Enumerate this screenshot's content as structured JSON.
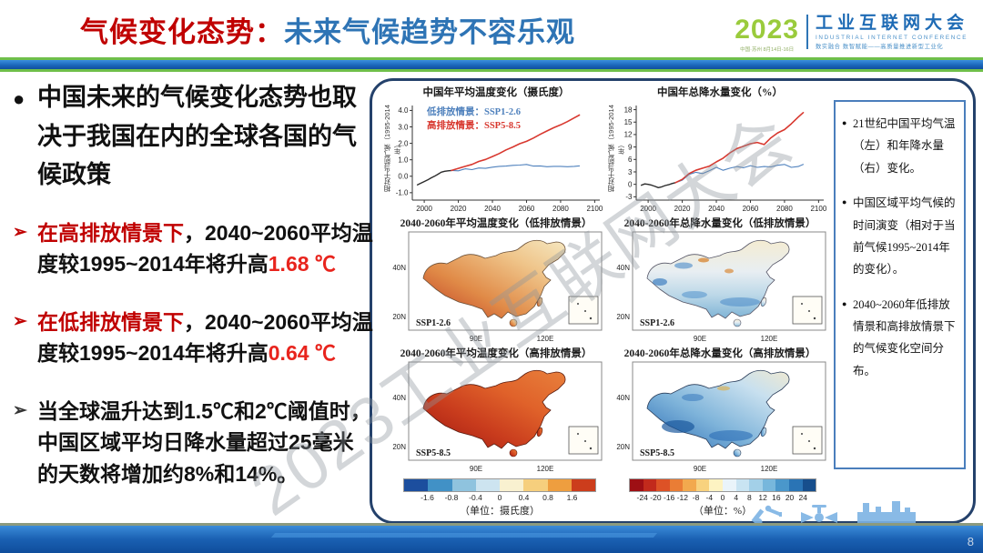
{
  "header": {
    "title_red": "气候变化态势：",
    "title_blue": "未来气候趋势不容乐观",
    "logo": {
      "year": "2023",
      "year_caption": "中国·苏州 8月14日-16日",
      "name_cn": "工业互联网大会",
      "name_en": "INDUSTRIAL INTERNET CONFERENCE",
      "slogan": "数实融合 数智赋能——高质量推进新型工业化"
    }
  },
  "left_panel": {
    "bullets": [
      {
        "cls": "b-main",
        "marker": "●",
        "marker_color": "#111111",
        "segments": [
          {
            "text": "中国未来的气候变化态势也取决于我国在内的全球各国的气候政策",
            "color": "#111111"
          }
        ]
      },
      {
        "cls": "b-sub",
        "marker": "➢",
        "marker_color": "#c00000",
        "segments": [
          {
            "text": "在高排放情景下",
            "color": "#c00000"
          },
          {
            "text": "，2040~2060平均温度较1995~2014年将升高",
            "color": "#111111"
          },
          {
            "text": "1.68 ℃",
            "color": "#e8241d"
          }
        ]
      },
      {
        "cls": "b-sub",
        "marker": "➢",
        "marker_color": "#c00000",
        "segments": [
          {
            "text": "在低排放情景下",
            "color": "#c00000"
          },
          {
            "text": "，2040~2060平均温度较1995~2014年将升高",
            "color": "#111111"
          },
          {
            "text": "0.64 ℃",
            "color": "#e8241d"
          }
        ]
      },
      {
        "cls": "b-sub b-last",
        "marker": "➢",
        "marker_color": "#333333",
        "segments": [
          {
            "text": "当全球温升达到1.5℃和2℃阈值时，中国区域平均日降水量超过25毫米的天数将增加约8%和14%。",
            "color": "#111111"
          }
        ]
      }
    ]
  },
  "notes_box": {
    "bullets": [
      "21世纪中国平均气温（左）和年降水量（右）变化。",
      "中国区域平均气候的时间演变（相对于当前气候1995~2014年的变化）。",
      "2040~2060年低排放情景和高排放情景下的气候变化空间分布。"
    ]
  },
  "chart_data": {
    "line_charts": [
      {
        "type": "line",
        "title": "中国年平均温度变化（摄氏度）",
        "ylabel": "相对于当前气候（1995-2014年）",
        "xlim": [
          1993,
          2103
        ],
        "ylim": [
          -1.45,
          4.3
        ],
        "xticks": [
          2000,
          2020,
          2040,
          2060,
          2080,
          2100
        ],
        "yticks": [
          -1,
          0,
          1,
          2,
          3,
          4
        ],
        "ytick_labels": [
          "-1.0",
          "0.0",
          "1.0",
          "2.0",
          "3.0",
          "4.0"
        ],
        "legend": [
          {
            "label": "低排放情景：SSP1-2.6",
            "color": "#4f81bd"
          },
          {
            "label": "高排放情景：SSP5-8.5",
            "color": "#d8382f"
          }
        ],
        "series": [
          {
            "name": "历史",
            "color": "#2b2b2b",
            "width": 1.4,
            "points": [
              [
                1996,
                -0.52
              ],
              [
                1998,
                -0.42
              ],
              [
                2000,
                -0.32
              ],
              [
                2002,
                -0.22
              ],
              [
                2004,
                -0.1
              ],
              [
                2006,
                0.0
              ],
              [
                2008,
                0.12
              ],
              [
                2010,
                0.25
              ],
              [
                2012,
                0.3
              ],
              [
                2014,
                0.33
              ],
              [
                2016,
                0.35
              ]
            ]
          },
          {
            "name": "SSP1-2.6",
            "color": "#4f81bd",
            "width": 1.1,
            "points": [
              [
                2016,
                0.35
              ],
              [
                2020,
                0.33
              ],
              [
                2024,
                0.45
              ],
              [
                2028,
                0.4
              ],
              [
                2032,
                0.5
              ],
              [
                2036,
                0.48
              ],
              [
                2040,
                0.55
              ],
              [
                2044,
                0.6
              ],
              [
                2048,
                0.62
              ],
              [
                2052,
                0.66
              ],
              [
                2056,
                0.68
              ],
              [
                2060,
                0.72
              ],
              [
                2064,
                0.62
              ],
              [
                2068,
                0.63
              ],
              [
                2072,
                0.58
              ],
              [
                2076,
                0.6
              ],
              [
                2080,
                0.6
              ],
              [
                2084,
                0.58
              ],
              [
                2088,
                0.6
              ],
              [
                2091,
                0.63
              ]
            ]
          },
          {
            "name": "SSP5-8.5",
            "color": "#d8382f",
            "width": 1.6,
            "points": [
              [
                2016,
                0.35
              ],
              [
                2020,
                0.48
              ],
              [
                2024,
                0.6
              ],
              [
                2028,
                0.72
              ],
              [
                2032,
                0.9
              ],
              [
                2036,
                1.02
              ],
              [
                2040,
                1.2
              ],
              [
                2044,
                1.38
              ],
              [
                2048,
                1.6
              ],
              [
                2052,
                1.78
              ],
              [
                2056,
                1.98
              ],
              [
                2060,
                2.12
              ],
              [
                2064,
                2.32
              ],
              [
                2068,
                2.55
              ],
              [
                2072,
                2.75
              ],
              [
                2076,
                2.95
              ],
              [
                2080,
                3.12
              ],
              [
                2084,
                3.32
              ],
              [
                2088,
                3.55
              ],
              [
                2091,
                3.72
              ]
            ]
          }
        ]
      },
      {
        "type": "line",
        "title": "中国年总降水量变化（%）",
        "ylabel": "相对于当前气候（1995-2014年）",
        "xlim": [
          1993,
          2103
        ],
        "ylim": [
          -3.8,
          19
        ],
        "xticks": [
          2000,
          2020,
          2040,
          2060,
          2080,
          2100
        ],
        "yticks": [
          -3,
          0,
          3,
          6,
          9,
          12,
          15,
          18
        ],
        "ytick_labels": [
          "-3",
          "0",
          "3",
          "6",
          "9",
          "12",
          "15",
          "18"
        ],
        "series": [
          {
            "name": "历史",
            "color": "#2b2b2b",
            "width": 1.4,
            "points": [
              [
                1996,
                -0.2
              ],
              [
                1998,
                0.1
              ],
              [
                2000,
                0.0
              ],
              [
                2002,
                -0.2
              ],
              [
                2004,
                -0.5
              ],
              [
                2006,
                -0.8
              ],
              [
                2008,
                -0.6
              ],
              [
                2010,
                -0.3
              ],
              [
                2012,
                -0.1
              ],
              [
                2014,
                0.2
              ],
              [
                2016,
                0.4
              ]
            ]
          },
          {
            "name": "SSP1-2.6",
            "color": "#4f81bd",
            "width": 1.1,
            "points": [
              [
                2016,
                0.4
              ],
              [
                2020,
                1.0
              ],
              [
                2024,
                2.4
              ],
              [
                2028,
                2.9
              ],
              [
                2032,
                2.6
              ],
              [
                2036,
                3.3
              ],
              [
                2040,
                4.1
              ],
              [
                2044,
                3.4
              ],
              [
                2048,
                3.9
              ],
              [
                2052,
                4.3
              ],
              [
                2056,
                4.0
              ],
              [
                2060,
                4.5
              ],
              [
                2064,
                4.1
              ],
              [
                2068,
                4.3
              ],
              [
                2072,
                4.2
              ],
              [
                2076,
                4.6
              ],
              [
                2080,
                4.8
              ],
              [
                2084,
                4.1
              ],
              [
                2088,
                4.3
              ],
              [
                2091,
                4.8
              ]
            ]
          },
          {
            "name": "SSP5-8.5",
            "color": "#d8382f",
            "width": 1.6,
            "points": [
              [
                2016,
                0.4
              ],
              [
                2020,
                1.2
              ],
              [
                2024,
                2.6
              ],
              [
                2028,
                3.4
              ],
              [
                2032,
                3.9
              ],
              [
                2036,
                4.4
              ],
              [
                2040,
                5.4
              ],
              [
                2044,
                6.3
              ],
              [
                2048,
                7.6
              ],
              [
                2052,
                8.6
              ],
              [
                2056,
                9.2
              ],
              [
                2060,
                9.8
              ],
              [
                2064,
                10.1
              ],
              [
                2068,
                9.6
              ],
              [
                2072,
                11.2
              ],
              [
                2076,
                12.4
              ],
              [
                2080,
                13.2
              ],
              [
                2084,
                14.6
              ],
              [
                2088,
                16.2
              ],
              [
                2091,
                17.3
              ]
            ]
          }
        ]
      }
    ],
    "maps": [
      {
        "type": "map",
        "title": "2040-2060年平均温度变化（低排放情景）",
        "scenario": "SSP1-2.6",
        "yticks": [
          "40N",
          "20N"
        ],
        "xticks": [
          "90E",
          "120E"
        ],
        "palette": "temp_low"
      },
      {
        "type": "map",
        "title": "2040-2060年总降水量变化（低排放情景）",
        "scenario": "SSP1-2.6",
        "yticks": [
          "40N",
          "20N"
        ],
        "xticks": [
          "90E",
          "120E"
        ],
        "palette": "precip_low"
      },
      {
        "type": "map",
        "title": "2040-2060年平均温度变化（高排放情景）",
        "scenario": "SSP5-8.5",
        "yticks": [
          "40N",
          "20N"
        ],
        "xticks": [
          "90E",
          "120E"
        ],
        "palette": "temp_high"
      },
      {
        "type": "map",
        "title": "2040-2060年总降水量变化（高排放情景）",
        "scenario": "SSP5-8.5",
        "yticks": [
          "40N",
          "20N"
        ],
        "xticks": [
          "90E",
          "120E"
        ],
        "palette": "precip_high"
      }
    ],
    "colorbars": [
      {
        "labels": [
          "-1.6",
          "-0.8",
          "-0.4",
          "0",
          "0.4",
          "0.8",
          "1.6"
        ],
        "unit": "（单位：摄氏度）",
        "colors": [
          "#1c4e9e",
          "#4191c6",
          "#8fc3de",
          "#cde4f0",
          "#f9f1d0",
          "#f6cf7d",
          "#ee9e3f",
          "#cc3d1c"
        ]
      },
      {
        "labels": [
          "-24",
          "-20",
          "-16",
          "-12",
          "-8",
          "-4",
          "0",
          "4",
          "8",
          "12",
          "16",
          "20",
          "24"
        ],
        "unit": "（单位：%）",
        "colors": [
          "#9e0f14",
          "#c22a1c",
          "#dd5226",
          "#ea7d35",
          "#f2a94e",
          "#f8d27e",
          "#fdf3c2",
          "#eaf4fa",
          "#c9e4f2",
          "#a3d0e8",
          "#77b7dc",
          "#4a97cb",
          "#2a74b5",
          "#174e8c"
        ]
      }
    ]
  },
  "watermark": "2023工业互联网大会",
  "footer": {
    "page_number": "8"
  },
  "colors": {
    "title_red": "#c00000",
    "title_blue": "#2e74b5",
    "logo_green": "#9acb3c",
    "logo_blue": "#1e6bb5",
    "band_blue": "#1a64b8",
    "band_green": "#6fbf4a",
    "panel_border": "#24416b",
    "notes_border": "#4a7ebc",
    "footer_blue": "#1a60b2"
  }
}
